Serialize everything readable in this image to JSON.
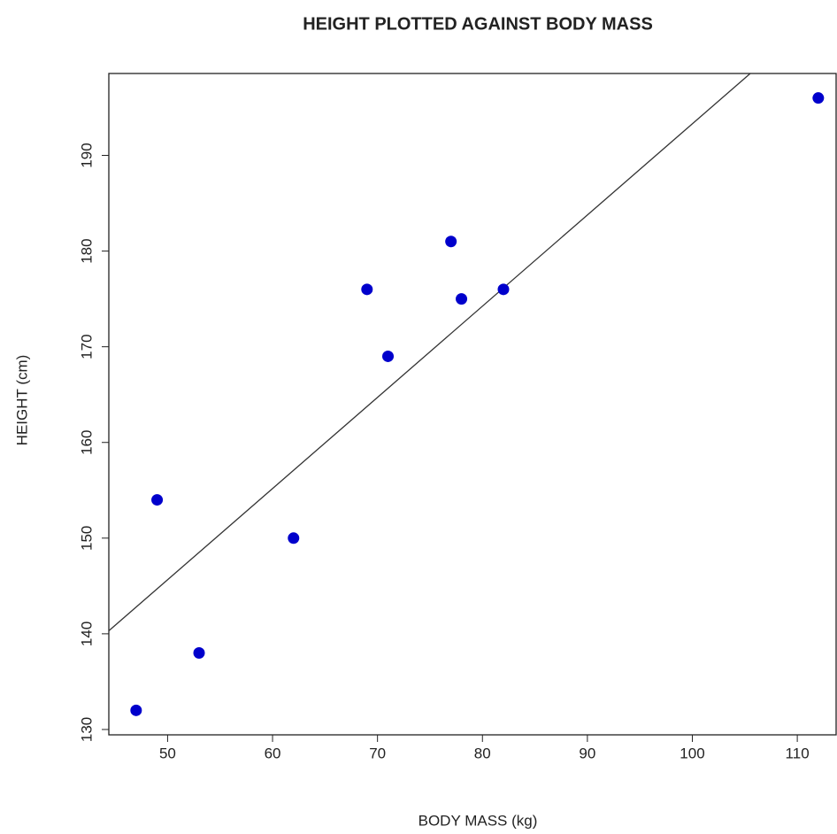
{
  "chart_data": {
    "type": "scatter",
    "title": "HEIGHT PLOTTED AGAINST BODY MASS",
    "x_label": "BODY MASS (kg)",
    "y_label": "HEIGHT (cm)",
    "x": [
      47,
      49,
      53,
      62,
      69,
      71,
      77,
      78,
      82,
      112
    ],
    "series": [
      {
        "name": "HEIGHT",
        "color": "#0000cc",
        "values": [
          132,
          154,
          138,
          150,
          176,
          169,
          181,
          175,
          176,
          196
        ]
      }
    ],
    "trend_line": {
      "slope": 0.953,
      "intercept": 98.0,
      "color": "#333333"
    },
    "xlim": [
      44.4,
      113.7
    ],
    "ylim": [
      129.44,
      198.56
    ],
    "xticks": [
      50,
      60,
      70,
      80,
      90,
      100,
      110
    ],
    "yticks": [
      130,
      140,
      150,
      160,
      170,
      180,
      190
    ],
    "grid": false
  }
}
